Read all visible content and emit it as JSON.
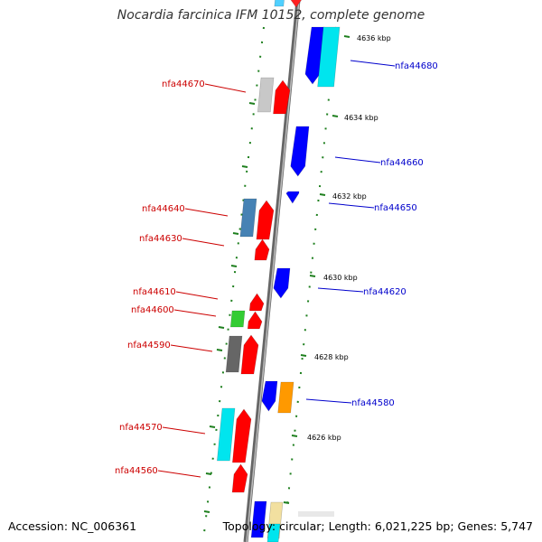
{
  "title": "Nocardia farcinica IFM 10152, complete genome",
  "accession": "Accession: NC_006361",
  "topology": "Topology: circular; Length: 6,021,225 bp; Genes: 5,747",
  "colors": {
    "backbone": "#888888",
    "tick": "#1e7f1e",
    "label_left": "#cc0000",
    "label_right": "#0000cc"
  },
  "kbp_labels": [
    "4636 kbp",
    "4634 kbp",
    "4632 kbp",
    "4630 kbp",
    "4628 kbp",
    "4626 kbp"
  ],
  "genes_left": [
    "nfa44670",
    "nfa44640",
    "nfa44630",
    "nfa44610",
    "nfa44600",
    "nfa44590",
    "nfa44570",
    "nfa44560"
  ],
  "genes_right": [
    "nfa44680",
    "nfa44660",
    "nfa44650",
    "nfa44620",
    "nfa44580"
  ]
}
